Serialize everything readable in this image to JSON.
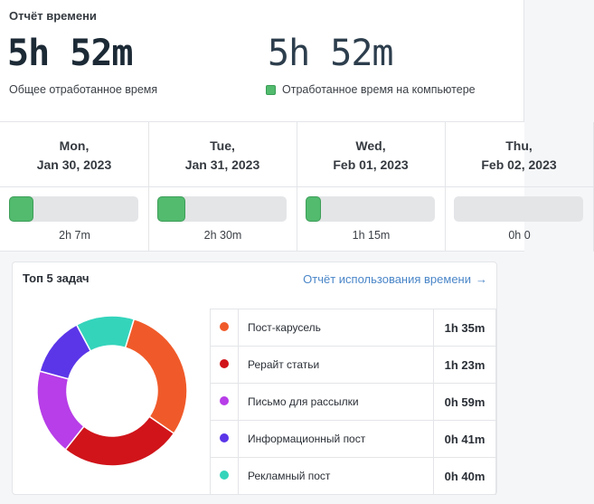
{
  "report": {
    "title": "Отчёт времени",
    "total_time": "5h 52m",
    "total_label": "Общее отработанное время",
    "computer_time": "5h 52m",
    "computer_label": "Отработанное время на компьютере",
    "computer_color": "#52bb6e"
  },
  "days": [
    {
      "weekday": "Mon,",
      "date": "Jan 30, 2023",
      "value": "2h 7m",
      "fill_fraction": 0.19
    },
    {
      "weekday": "Tue,",
      "date": "Jan 31, 2023",
      "value": "2h 30m",
      "fill_fraction": 0.22
    },
    {
      "weekday": "Wed,",
      "date": "Feb 01, 2023",
      "value": "1h 15m",
      "fill_fraction": 0.12
    },
    {
      "weekday": "Thu,",
      "date": "Feb 02, 2023",
      "value": "0h 0",
      "fill_fraction": 0
    }
  ],
  "top_tasks": {
    "title": "Топ 5 задач",
    "link_label": "Отчёт использования времени",
    "link_arrow": "→",
    "items": [
      {
        "name": "Пост-карусель",
        "time": "1h 35m",
        "minutes": 95,
        "color": "#f05a2a"
      },
      {
        "name": "Рерайт статьи",
        "time": "1h 23m",
        "minutes": 83,
        "color": "#d0141a"
      },
      {
        "name": "Письмо для рассылки",
        "time": "0h 59m",
        "minutes": 59,
        "color": "#b73ee8"
      },
      {
        "name": "Информационный пост",
        "time": "0h 41m",
        "minutes": 41,
        "color": "#5b36e8"
      },
      {
        "name": "Рекламный пост",
        "time": "0h 40m",
        "minutes": 40,
        "color": "#34d4bb"
      }
    ]
  }
}
